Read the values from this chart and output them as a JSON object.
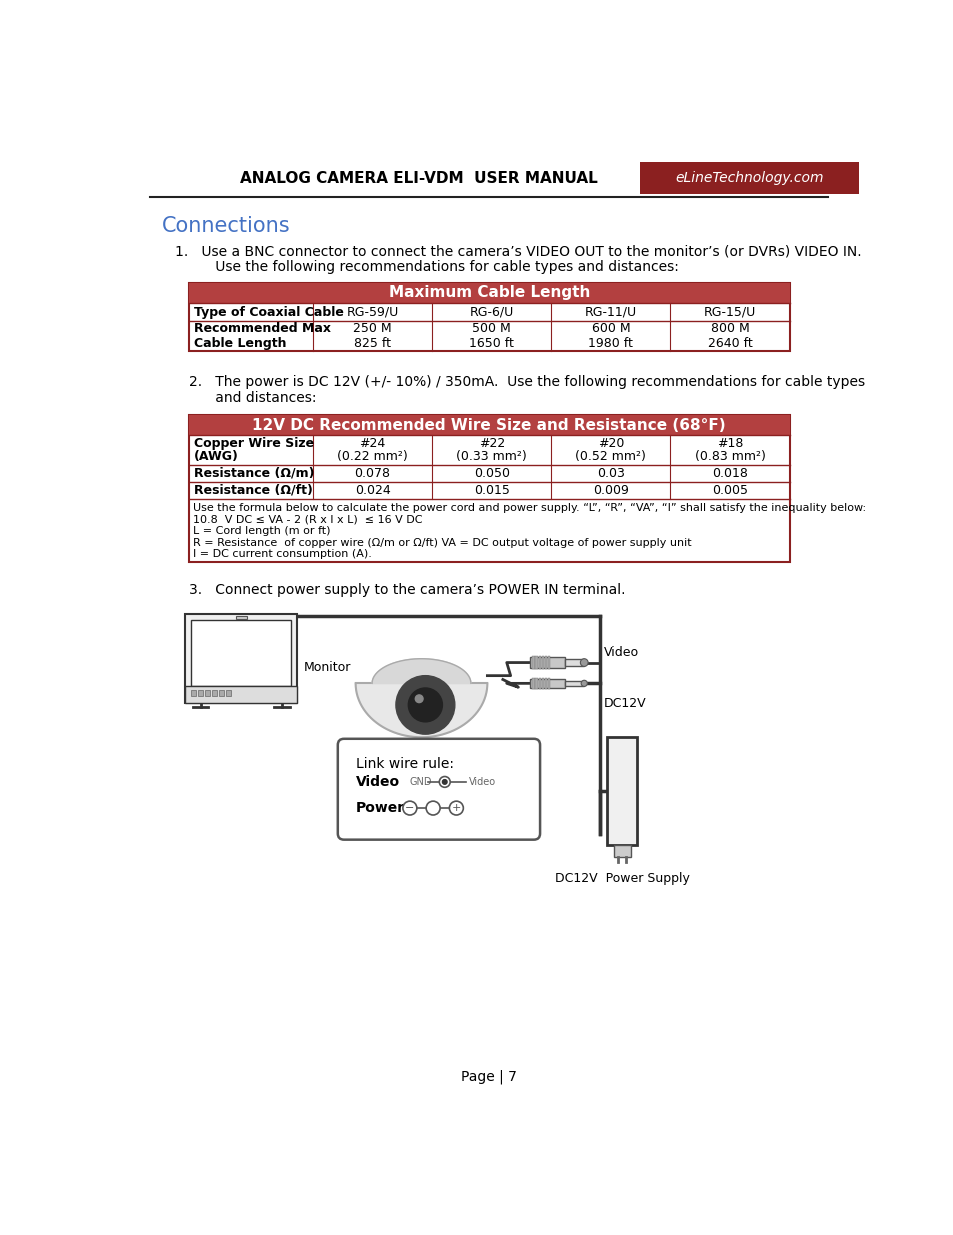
{
  "page_bg": "#ffffff",
  "header_bg": "#8b2020",
  "header_title": "ANALOG CAMERA ELI-VDM  USER MANUAL",
  "header_subtitle": "eLineTechnology.com",
  "section_title": "Connections",
  "section_title_color": "#4472c4",
  "table_header_bg": "#b34040",
  "table_border_color": "#8b2020",
  "para1_line1": "1.   Use a BNC connector to connect the camera’s VIDEO OUT to the monitor’s (or DVRs) VIDEO IN.",
  "para1_line2": "      Use the following recommendations for cable types and distances:",
  "table1_title": "Maximum Cable Length",
  "table1_col0": "Type of Coaxial Cable",
  "table1_cols": [
    "RG-59/U",
    "RG-6/U",
    "RG-11/U",
    "RG-15/U"
  ],
  "table1_row1_label": "Recommended Max",
  "table1_row1_vals": [
    "250 M",
    "500 M",
    "600 M",
    "800 M"
  ],
  "table1_row2_label": "Cable Length",
  "table1_row2_vals": [
    "825 ft",
    "1650 ft",
    "1980 ft",
    "2640 ft"
  ],
  "para2_line1": "2.   The power is DC 12V (+/- 10%) / 350mA.  Use the following recommendations for cable types",
  "para2_line2": "      and distances:",
  "table2_title": "12V DC Recommended Wire Size and Resistance (68°F)",
  "table2_row0_col0_l1": "Copper Wire Size",
  "table2_row0_col0_l2": "(AWG)",
  "table2_row0_cols_l1": [
    "#24",
    "#22",
    "#20",
    "#18"
  ],
  "table2_row0_cols_l2": [
    "(0.22 mm²)",
    "(0.33 mm²)",
    "(0.52 mm²)",
    "(0.83 mm²)"
  ],
  "table2_row1_label": "Resistance (Ω/m)",
  "table2_row1_vals": [
    "0.078",
    "0.050",
    "0.03",
    "0.018"
  ],
  "table2_row2_label": "Resistance (Ω/ft)",
  "table2_row2_vals": [
    "0.024",
    "0.015",
    "0.009",
    "0.005"
  ],
  "table2_footer_lines": [
    "Use the formula below to calculate the power cord and power supply. “L”, “R”, “VA”, “I” shall satisfy the inequality below:",
    "10.8  V DC ≤ VA - 2 (R x l x L)  ≤ 16 V DC",
    "L = Cord length (m or ft)",
    "R = Resistance  of copper wire (Ω/m or Ω/ft) VA = DC output voltage of power supply unit",
    "I = DC current consumption (A)."
  ],
  "para3": "3.   Connect power supply to the camera’s POWER IN terminal.",
  "diag_monitor_label": "Monitor",
  "diag_video_label": "Video",
  "diag_dc12v_label": "DC12V",
  "diag_ps_label": "DC12V  Power Supply",
  "diag_linkwire_title": "Link wire rule:",
  "diag_linkwire_video": "Video",
  "diag_linkwire_gnd": "GND",
  "diag_linkwire_vidtxt": "Video",
  "diag_linkwire_power": "Power",
  "page_number": "Page | 7"
}
